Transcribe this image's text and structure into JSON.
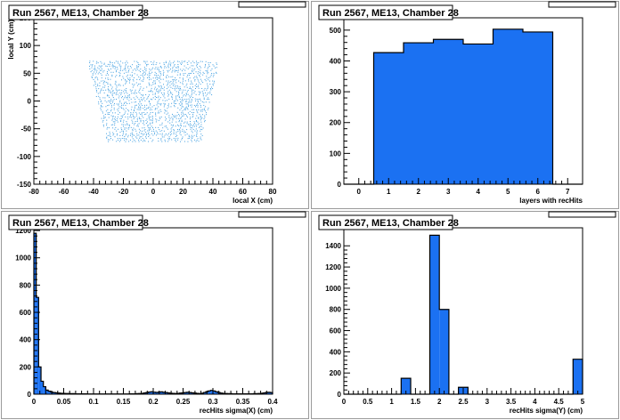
{
  "chart_data": [
    {
      "type": "scatter",
      "title": "Run 2567, ME13, Chamber 28",
      "xlabel": "local X (cm)",
      "ylabel": "local Y (cm)",
      "xlim": [
        -80,
        80
      ],
      "ylim": [
        -150,
        150
      ],
      "xticks": [
        -80,
        -60,
        -40,
        -20,
        0,
        20,
        40,
        60,
        80
      ],
      "yticks": [
        -150,
        -100,
        -50,
        0,
        50,
        100,
        150
      ],
      "region": {
        "y_top": 72,
        "y_bottom": -72,
        "x_top_min": -45,
        "x_top_max": 44,
        "x_bottom_min": -32,
        "x_bottom_max": 32
      },
      "point_color": "#3f9ee0"
    },
    {
      "type": "bar",
      "title": "Run 2567, ME13, Chamber 28",
      "xlabel": "layers with recHits",
      "ylabel": "",
      "xlim": [
        -0.5,
        7.5
      ],
      "ylim": [
        0,
        540
      ],
      "xticks": [
        0,
        1,
        2,
        3,
        4,
        5,
        6,
        7
      ],
      "yticks": [
        0,
        100,
        200,
        300,
        400,
        500
      ],
      "bin_width": 1,
      "bins": [
        {
          "center": 0,
          "value": 0
        },
        {
          "center": 1,
          "value": 427
        },
        {
          "center": 2,
          "value": 459
        },
        {
          "center": 3,
          "value": 470
        },
        {
          "center": 4,
          "value": 455
        },
        {
          "center": 5,
          "value": 503
        },
        {
          "center": 6,
          "value": 494
        },
        {
          "center": 7,
          "value": 0
        }
      ],
      "fill_color": "#1b71f2"
    },
    {
      "type": "bar",
      "title": "Run 2567, ME13, Chamber 28",
      "xlabel": "recHits sigma(X) (cm)",
      "ylabel": "",
      "xlim": [
        0,
        0.4
      ],
      "ylim": [
        0,
        1220
      ],
      "xticks": [
        0,
        0.05,
        0.1,
        0.15,
        0.2,
        0.25,
        0.3,
        0.35,
        0.4
      ],
      "yticks": [
        0,
        200,
        400,
        600,
        800,
        1000,
        1200
      ],
      "bin_width": 0.004,
      "values": [
        1180,
        710,
        200,
        95,
        55,
        30,
        22,
        15,
        12,
        10,
        8,
        7,
        6,
        5,
        5,
        4,
        4,
        3,
        3,
        3,
        3,
        3,
        2,
        2,
        2,
        2,
        2,
        2,
        2,
        2,
        2,
        2,
        2,
        2,
        2,
        2,
        2,
        2,
        2,
        2,
        3,
        3,
        3,
        4,
        5,
        6,
        9,
        12,
        16,
        18,
        15,
        13,
        15,
        17,
        14,
        12,
        9,
        7,
        6,
        5,
        6,
        8,
        10,
        12,
        14,
        12,
        10,
        8,
        6,
        5,
        7,
        12,
        18,
        24,
        28,
        24,
        18,
        12,
        8,
        6,
        5,
        4,
        4,
        3,
        3,
        3,
        3,
        3,
        3,
        3,
        3,
        3,
        4,
        4,
        5,
        7,
        9,
        12,
        14,
        12
      ],
      "fill_color": "#1b71f2"
    },
    {
      "type": "bar",
      "title": "Run 2567, ME13, Chamber 28",
      "xlabel": "recHits sigma(Y) (cm)",
      "ylabel": "",
      "xlim": [
        0,
        5
      ],
      "ylim": [
        0,
        1570
      ],
      "xticks": [
        0,
        0.5,
        1,
        1.5,
        2,
        2.5,
        3,
        3.5,
        4,
        4.5,
        5
      ],
      "yticks": [
        0,
        200,
        400,
        600,
        800,
        1000,
        1200,
        1400
      ],
      "bins": [
        {
          "start": 0,
          "end": 1.2,
          "value": 0
        },
        {
          "start": 1.2,
          "end": 1.4,
          "value": 150
        },
        {
          "start": 1.4,
          "end": 1.8,
          "value": 0
        },
        {
          "start": 1.8,
          "end": 2.0,
          "value": 1500
        },
        {
          "start": 2.0,
          "end": 2.2,
          "value": 800
        },
        {
          "start": 2.2,
          "end": 2.4,
          "value": 0
        },
        {
          "start": 2.4,
          "end": 2.6,
          "value": 65
        },
        {
          "start": 2.6,
          "end": 4.8,
          "value": 0
        },
        {
          "start": 4.8,
          "end": 5.0,
          "value": 330
        }
      ],
      "fill_color": "#1b71f2"
    }
  ]
}
